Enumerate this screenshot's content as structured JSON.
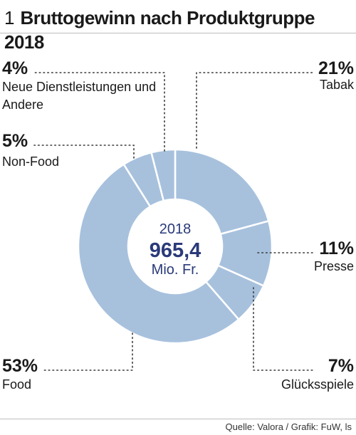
{
  "header": {
    "number": "1",
    "title": "Bruttogewinn nach Produktgruppe 2018"
  },
  "chart_data": {
    "type": "pie",
    "donut": true,
    "title": "Bruttogewinn nach Produktgruppe 2018",
    "center": {
      "year": "2018",
      "value": "965,4",
      "unit": "Mio. Fr."
    },
    "slice_color": "#a7c1dd",
    "slices": [
      {
        "label": "Tabak",
        "percent_label": "21%",
        "value": 21
      },
      {
        "label": "Presse",
        "percent_label": "11%",
        "value": 11
      },
      {
        "label": "Glücksspiele",
        "percent_label": "7%",
        "value": 7
      },
      {
        "label": "Food",
        "percent_label": "53%",
        "value": 53
      },
      {
        "label": "Non-Food",
        "percent_label": "5%",
        "value": 5
      },
      {
        "label": "Neue Dienstleistungen und Andere",
        "label_lines": [
          "Neue Dienstleistungen und",
          "Andere"
        ],
        "percent_label": "4%",
        "value": 4
      }
    ]
  },
  "source": "Quelle: Valora / Grafik: FuW, ls"
}
